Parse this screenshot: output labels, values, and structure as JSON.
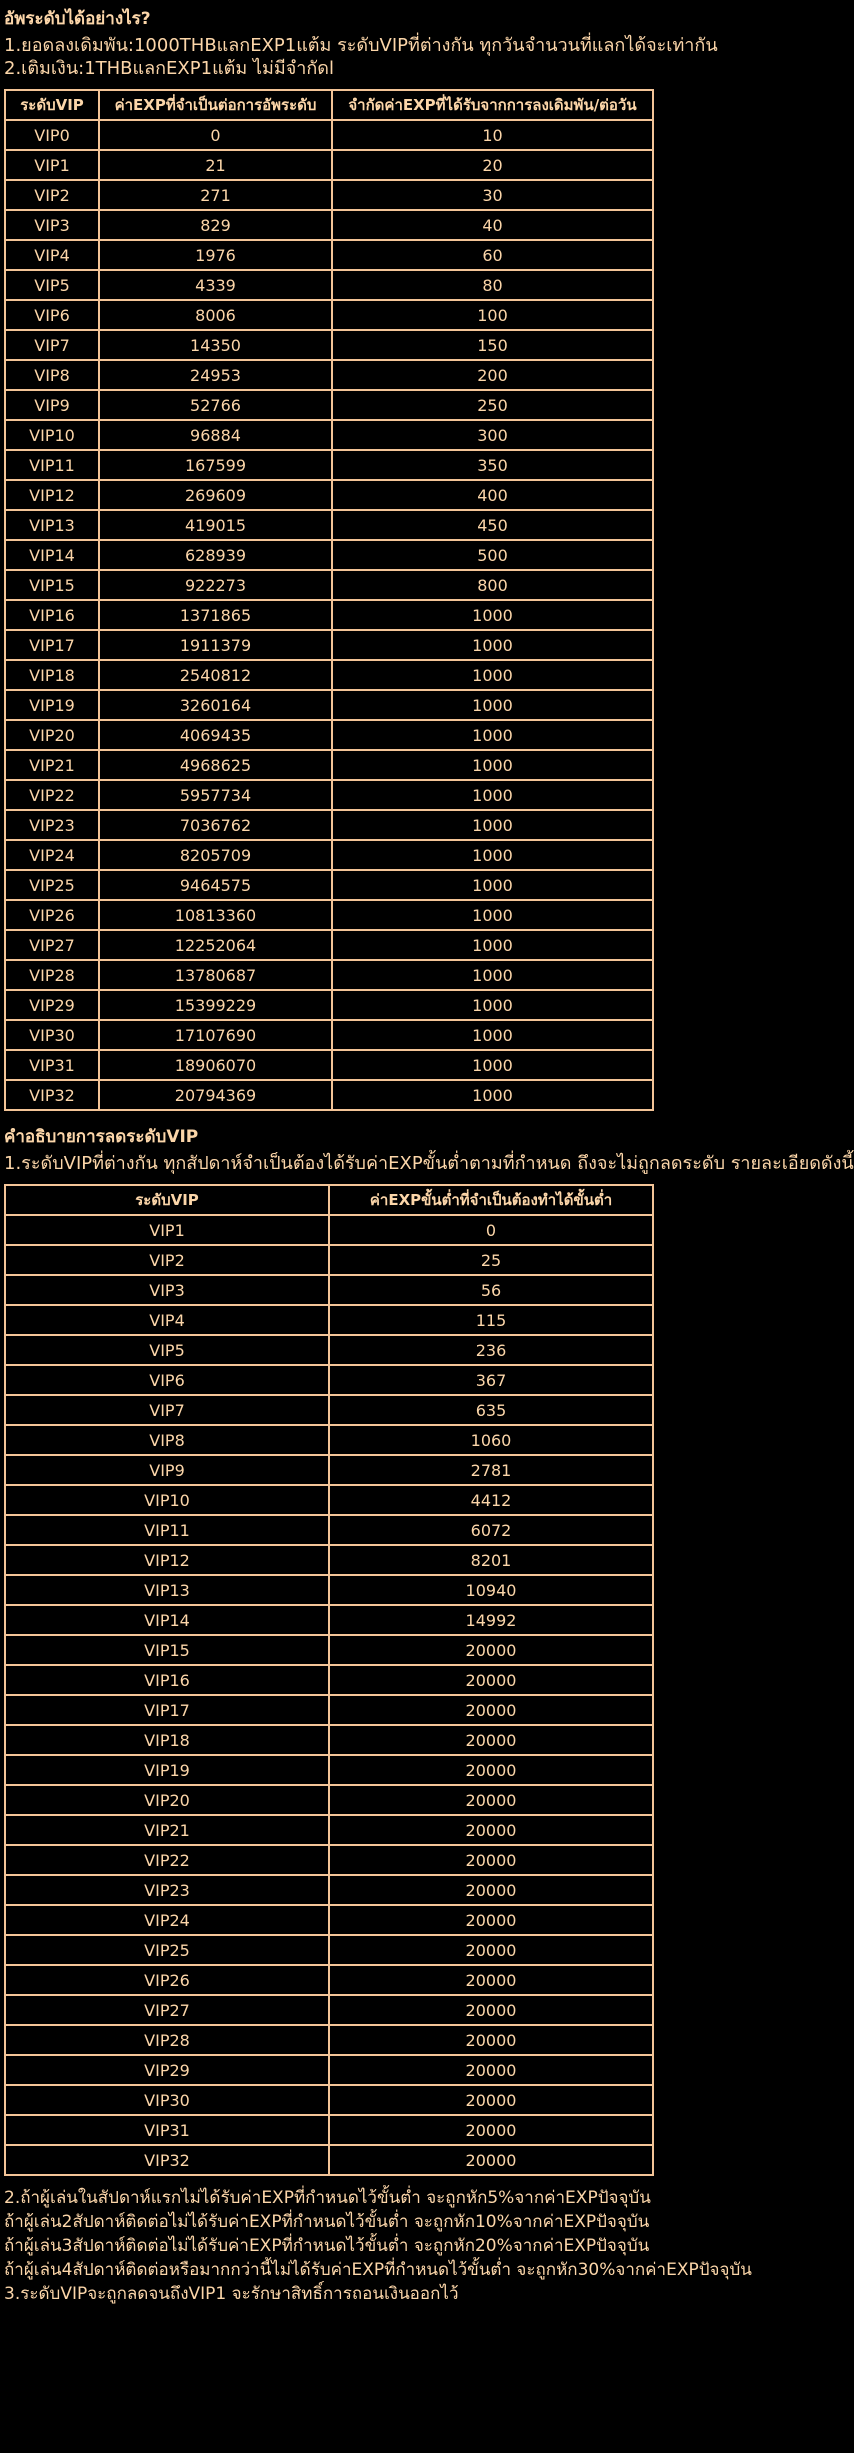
{
  "colors": {
    "background": "#000000",
    "text": "#FCD6A9",
    "table_border": "#F3C497"
  },
  "page": {
    "title": "อัพระดับได้อย่างไร?",
    "intro_lines": [
      "1.ยอดลงเดิมพัน:1000THBแลกEXP1แต้ม ระดับVIPที่ต่างกัน ทุกวันจำนวนที่แลกได้จะเท่ากัน",
      "2.เติมเงิน:1THBแลกEXP1แต้ม ไม่มีจำกัดl"
    ],
    "section2": {
      "title": "คำอธิบายการลดระดับVIP",
      "line": "1.ระดับVIPที่ต่างกัน ทุกสัปดาห์จำเป็นต้องได้รับค่าEXPขั้นต่ำตามที่กำหนด ถึงจะไม่ถูกลดระดับ รายละเอียดดังนี้"
    },
    "footer_lines": [
      "2.ถ้าผู้เล่นในสัปดาห์แรกไม่ได้รับค่าEXPที่กำหนดไว้ขั้นต่ำ จะถูกหัก5%จากค่าEXPปัจจุบัน",
      "ถ้าผู้เล่น2สัปดาห์ติดต่อไม่ได้รับค่าEXPที่กำหนดไว้ขั้นต่ำ จะถูกหัก10%จากค่าEXPปัจจุบัน",
      "ถ้าผู้เล่น3สัปดาห์ติดต่อไม่ได้รับค่าEXPที่กำหนดไว้ขั้นต่ำ จะถูกหัก20%จากค่าEXPปัจจุบัน",
      "ถ้าผู้เล่น4สัปดาห์ติดต่อหรือมากกว่านี้ไม่ได้รับค่าEXPที่กำหนดไว้ขั้นต่ำ จะถูกหัก30%จากค่าEXPปัจจุบัน",
      "3.ระดับVIPจะถูกลดจนถึงVIP1 จะรักษาสิทธิ์การถอนเงินออกไว้"
    ]
  },
  "table1": {
    "headers": [
      "ระดับVIP",
      "ค่าEXPที่จำเป็นต่อการอัพระดับ",
      "จำกัดค่าEXPที่ได้รับจากการลงเดิมพัน/ต่อวัน"
    ],
    "rows": [
      [
        "VIP0",
        "0",
        "10"
      ],
      [
        "VIP1",
        "21",
        "20"
      ],
      [
        "VIP2",
        "271",
        "30"
      ],
      [
        "VIP3",
        "829",
        "40"
      ],
      [
        "VIP4",
        "1976",
        "60"
      ],
      [
        "VIP5",
        "4339",
        "80"
      ],
      [
        "VIP6",
        "8006",
        "100"
      ],
      [
        "VIP7",
        "14350",
        "150"
      ],
      [
        "VIP8",
        "24953",
        "200"
      ],
      [
        "VIP9",
        "52766",
        "250"
      ],
      [
        "VIP10",
        "96884",
        "300"
      ],
      [
        "VIP11",
        "167599",
        "350"
      ],
      [
        "VIP12",
        "269609",
        "400"
      ],
      [
        "VIP13",
        "419015",
        "450"
      ],
      [
        "VIP14",
        "628939",
        "500"
      ],
      [
        "VIP15",
        "922273",
        "800"
      ],
      [
        "VIP16",
        "1371865",
        "1000"
      ],
      [
        "VIP17",
        "1911379",
        "1000"
      ],
      [
        "VIP18",
        "2540812",
        "1000"
      ],
      [
        "VIP19",
        "3260164",
        "1000"
      ],
      [
        "VIP20",
        "4069435",
        "1000"
      ],
      [
        "VIP21",
        "4968625",
        "1000"
      ],
      [
        "VIP22",
        "5957734",
        "1000"
      ],
      [
        "VIP23",
        "7036762",
        "1000"
      ],
      [
        "VIP24",
        "8205709",
        "1000"
      ],
      [
        "VIP25",
        "9464575",
        "1000"
      ],
      [
        "VIP26",
        "10813360",
        "1000"
      ],
      [
        "VIP27",
        "12252064",
        "1000"
      ],
      [
        "VIP28",
        "13780687",
        "1000"
      ],
      [
        "VIP29",
        "15399229",
        "1000"
      ],
      [
        "VIP30",
        "17107690",
        "1000"
      ],
      [
        "VIP31",
        "18906070",
        "1000"
      ],
      [
        "VIP32",
        "20794369",
        "1000"
      ]
    ]
  },
  "table2": {
    "headers": [
      "ระดับVIP",
      "ค่าEXPขั้นต่ำที่จำเป็นต้องทำได้ขั้นต่ำ"
    ],
    "rows": [
      [
        "VIP1",
        "0"
      ],
      [
        "VIP2",
        "25"
      ],
      [
        "VIP3",
        "56"
      ],
      [
        "VIP4",
        "115"
      ],
      [
        "VIP5",
        "236"
      ],
      [
        "VIP6",
        "367"
      ],
      [
        "VIP7",
        "635"
      ],
      [
        "VIP8",
        "1060"
      ],
      [
        "VIP9",
        "2781"
      ],
      [
        "VIP10",
        "4412"
      ],
      [
        "VIP11",
        "6072"
      ],
      [
        "VIP12",
        "8201"
      ],
      [
        "VIP13",
        "10940"
      ],
      [
        "VIP14",
        "14992"
      ],
      [
        "VIP15",
        "20000"
      ],
      [
        "VIP16",
        "20000"
      ],
      [
        "VIP17",
        "20000"
      ],
      [
        "VIP18",
        "20000"
      ],
      [
        "VIP19",
        "20000"
      ],
      [
        "VIP20",
        "20000"
      ],
      [
        "VIP21",
        "20000"
      ],
      [
        "VIP22",
        "20000"
      ],
      [
        "VIP23",
        "20000"
      ],
      [
        "VIP24",
        "20000"
      ],
      [
        "VIP25",
        "20000"
      ],
      [
        "VIP26",
        "20000"
      ],
      [
        "VIP27",
        "20000"
      ],
      [
        "VIP28",
        "20000"
      ],
      [
        "VIP29",
        "20000"
      ],
      [
        "VIP30",
        "20000"
      ],
      [
        "VIP31",
        "20000"
      ],
      [
        "VIP32",
        "20000"
      ]
    ]
  }
}
